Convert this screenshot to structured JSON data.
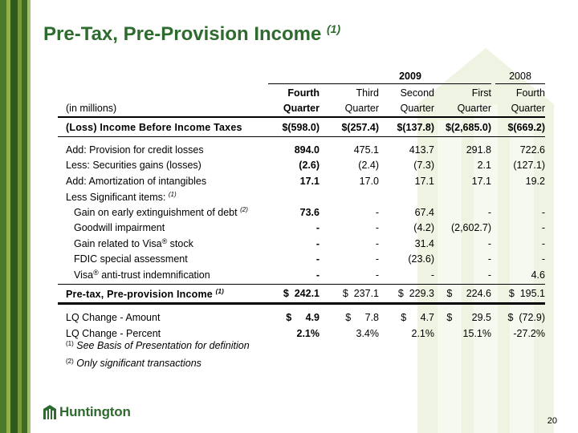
{
  "title": "Pre-Tax, Pre-Provision Income",
  "title_sup": "(1)",
  "header": {
    "year2009": "2009",
    "year2008": "2008",
    "units": "(in millions)",
    "col_line1": [
      "Fourth",
      "Third",
      "Second",
      "First",
      "Fourth"
    ],
    "col_line2": [
      "Quarter",
      "Quarter",
      "Quarter",
      "Quarter",
      "Quarter"
    ]
  },
  "rows": [
    {
      "label": "(Loss) Income Before Income Taxes",
      "values": [
        "$(598.0)",
        "$(257.4)",
        "$(137.8)",
        "$(2,685.0)",
        "$(669.2)"
      ]
    },
    {
      "label": "Add:  Provision for credit losses",
      "values": [
        "894.0",
        "475.1",
        "413.7",
        "291.8",
        "722.6"
      ]
    },
    {
      "label": "Less:  Securities gains (losses)",
      "values": [
        "(2.6)",
        "(2.4)",
        "(7.3)",
        "2.1",
        "(127.1)"
      ]
    },
    {
      "label": "Add:  Amortization of intangibles",
      "values": [
        "17.1",
        "17.0",
        "17.1",
        "17.1",
        "19.2"
      ]
    },
    {
      "label": "Less Significant items:",
      "sup": "(1)"
    },
    {
      "label": "Gain on early extinguishment of debt",
      "sup": "(2)",
      "values": [
        "73.6",
        "-",
        "67.4",
        "-",
        "-"
      ]
    },
    {
      "label": "Goodwill impairment",
      "values": [
        "-",
        "-",
        "(4.2)",
        "(2,602.7)",
        "-"
      ]
    },
    {
      "label": "Gain related to Visa",
      "reg": "®",
      "tail": " stock",
      "values": [
        "-",
        "-",
        "31.4",
        "-",
        "-"
      ]
    },
    {
      "label": "FDIC special assessment",
      "values": [
        "-",
        "-",
        "(23.6)",
        "-",
        "-"
      ]
    },
    {
      "label": "Visa",
      "reg": "®",
      "tail": " anti-trust indemnification",
      "values": [
        "-",
        "-",
        "-",
        "-",
        "4.6"
      ]
    },
    {
      "label": "Pre-tax, Pre-provision Income",
      "sup": "(1)",
      "values": [
        "$  242.1",
        "$  237.1",
        "$  229.3",
        "$     224.6",
        "$  195.1"
      ]
    },
    {
      "label": "LQ Change - Amount",
      "values": [
        "$     4.9",
        "$     7.8",
        "$     4.7",
        "$       29.5",
        "$  (72.9)"
      ]
    },
    {
      "label": "LQ Change - Percent",
      "values": [
        "2.1%",
        "3.4%",
        "2.1%",
        "15.1%",
        "-27.2%"
      ]
    }
  ],
  "footnotes": [
    {
      "mark": "(1)",
      "text": "See Basis of Presentation for definition"
    },
    {
      "mark": "(2)",
      "text": "Only significant transactions"
    }
  ],
  "logo_text": "Huntington",
  "page_number": "20",
  "colors": {
    "brand_green": "#2e6b2e",
    "stripe_dark": "#2f5a1f",
    "stripe_light": "#7a9a3a"
  }
}
